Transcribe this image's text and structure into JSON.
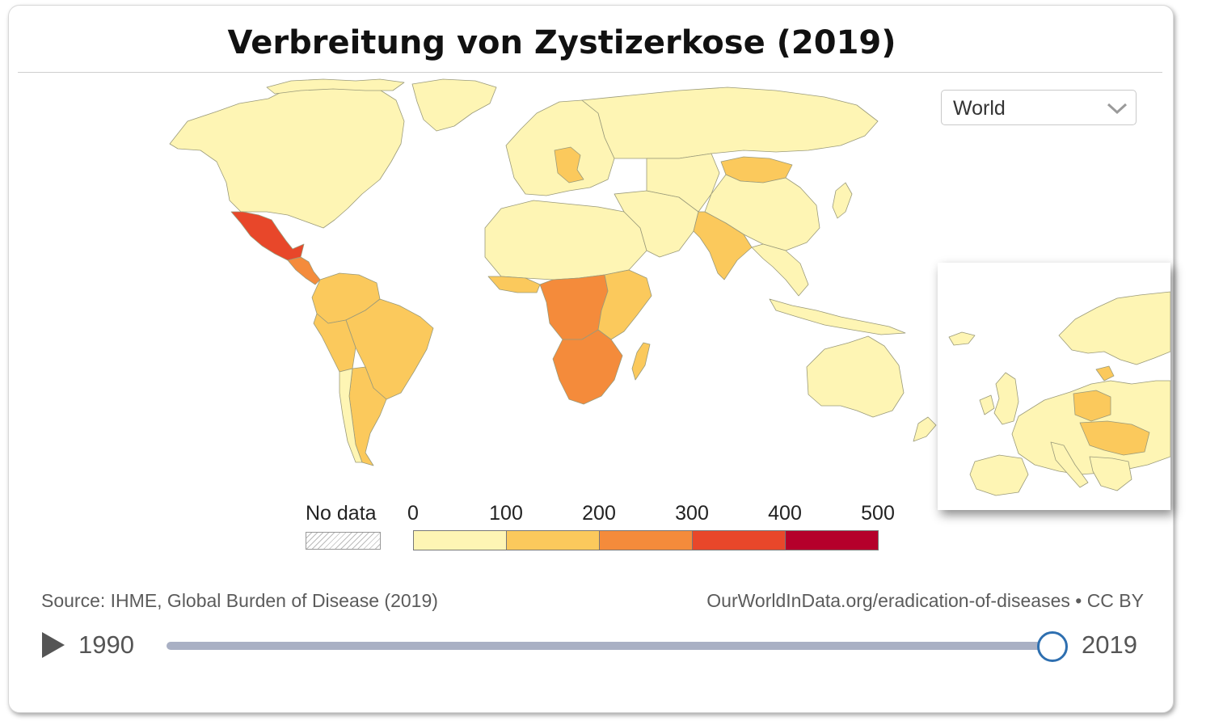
{
  "title": "Verbreitung von Zystizerkose (2019)",
  "region_selector": {
    "value": "World"
  },
  "legend": {
    "no_data_label": "No data",
    "ticks": [
      "0",
      "100",
      "200",
      "300",
      "400",
      "500"
    ],
    "bin_colors": [
      "#fef5b4",
      "#fbc95c",
      "#f48b3b",
      "#e8472a",
      "#b5002b"
    ]
  },
  "map": {
    "base_color": "#fef5b4",
    "border_color": "#9a9a7a",
    "countries": {
      "mexico": "#e8472a",
      "central_america": "#f48b3b",
      "south_america_north": "#fbc95c",
      "brazil": "#fbc95c",
      "south_america_south": "#fbc95c",
      "chile": "#fef5b4",
      "west_africa": "#fbc95c",
      "central_africa": "#f48b3b",
      "east_africa": "#fbc95c",
      "southern_africa": "#f48b3b",
      "madagascar": "#fbc95c",
      "india": "#fbc95c",
      "mongolia": "#fbc95c",
      "europe_highlight": "#fbc95c"
    }
  },
  "source": "Source: IHME, Global Burden of Disease (2019)",
  "url": "OurWorldInData.org/eradication-of-diseases • CC BY",
  "timeline": {
    "start_year": "1990",
    "end_year": "2019",
    "position": 1.0
  }
}
